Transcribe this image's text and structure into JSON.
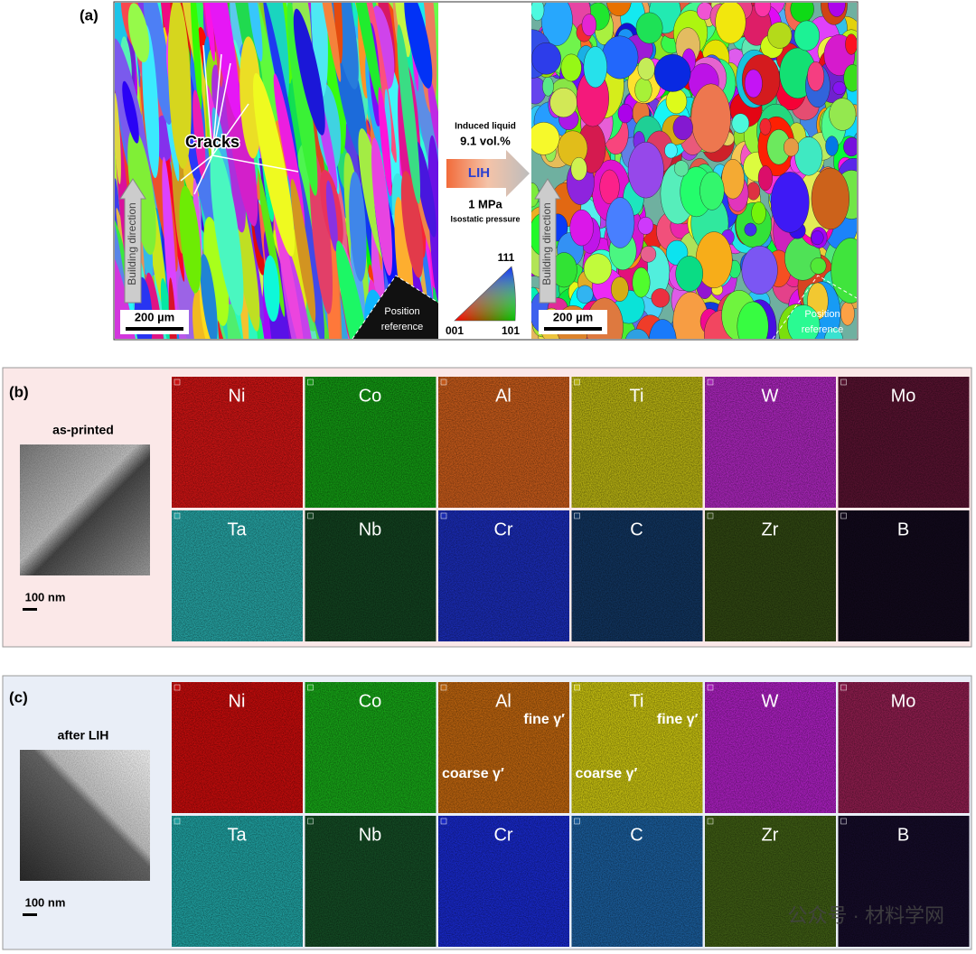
{
  "panel_a": {
    "label": "(a)",
    "left": {
      "cracks": "Cracks",
      "building_direction": "Building direction",
      "scale_bar": "200 µm",
      "position_reference": [
        "Position",
        "reference"
      ]
    },
    "center": {
      "induced": "Induced liquid",
      "fraction": "9.1 vol.%",
      "process": "LIH",
      "pressure": "1 MPa",
      "pressure_type": "Isostatic pressure",
      "ipf": [
        "111",
        "001",
        "101"
      ]
    },
    "right": {
      "building_direction": "Building direction",
      "scale_bar": "200 µm",
      "position_reference": [
        "Position",
        "reference"
      ]
    }
  },
  "panel_b": {
    "label": "(b)",
    "caption": "as-printed",
    "scale_bar": "100 nm",
    "elements": [
      {
        "name": "Ni",
        "color": "#c81414"
      },
      {
        "name": "Co",
        "color": "#139313"
      },
      {
        "name": "Al",
        "color": "#c0581a"
      },
      {
        "name": "Ti",
        "color": "#b2ad12"
      },
      {
        "name": "W",
        "color": "#a525b5"
      },
      {
        "name": "Mo",
        "color": "#55122f"
      },
      {
        "name": "Ta",
        "color": "#259e9e"
      },
      {
        "name": "Nb",
        "color": "#12401f"
      },
      {
        "name": "Cr",
        "color": "#1a2bb0"
      },
      {
        "name": "C",
        "color": "#11335c"
      },
      {
        "name": "Zr",
        "color": "#2f4512"
      },
      {
        "name": "B",
        "color": "#120a1c"
      }
    ]
  },
  "panel_c": {
    "label": "(c)",
    "caption": "after LIH",
    "scale_bar": "100 nm",
    "elements": [
      {
        "name": "Ni",
        "color": "#c10c0c"
      },
      {
        "name": "Co",
        "color": "#17a017"
      },
      {
        "name": "Al",
        "color": "#b8620f",
        "notes": [
          "fine γ′",
          "coarse γ′"
        ]
      },
      {
        "name": "Ti",
        "color": "#c2bc10",
        "notes": [
          "fine γ′",
          "coarse γ′"
        ]
      },
      {
        "name": "W",
        "color": "#a61fba"
      },
      {
        "name": "Mo",
        "color": "#8a1d4c"
      },
      {
        "name": "Ta",
        "color": "#1f9c9c"
      },
      {
        "name": "Nb",
        "color": "#144a24"
      },
      {
        "name": "Cr",
        "color": "#1828c4"
      },
      {
        "name": "C",
        "color": "#1a5a96"
      },
      {
        "name": "Zr",
        "color": "#3d5a14"
      },
      {
        "name": "B",
        "color": "#150c28"
      }
    ]
  },
  "watermark": "公众号 · 材料学网"
}
